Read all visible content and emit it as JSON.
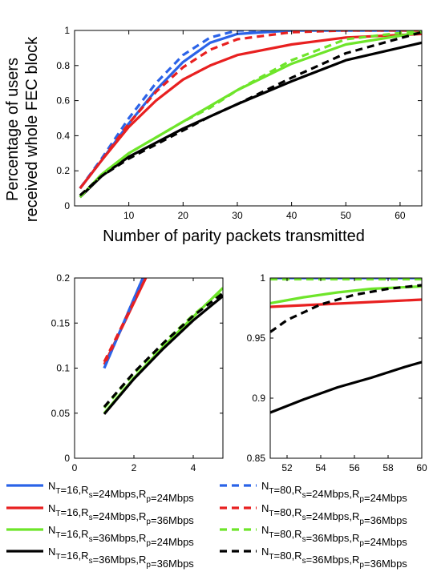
{
  "chart_data": [
    {
      "type": "line",
      "id": "main",
      "xlabel": "Number of parity packets transmitted",
      "ylabel": [
        "Percentage of users",
        "received whole FEC block"
      ],
      "xlim": [
        0,
        64
      ],
      "ylim": [
        0,
        1
      ],
      "xticks": [
        10,
        20,
        30,
        40,
        50,
        60
      ],
      "yticks": [
        0,
        0.2,
        0.4,
        0.6,
        0.8,
        1
      ],
      "ytick_labels": [
        "0",
        "0.2",
        "0.4",
        "0.6",
        "0.8",
        "1"
      ],
      "grid": false,
      "series": [
        {
          "ref": "s1",
          "color": "#2b63e8",
          "dash": false,
          "x": [
            1,
            5,
            10,
            15,
            20,
            25,
            30,
            40,
            50,
            64
          ],
          "y": [
            0.1,
            0.26,
            0.47,
            0.66,
            0.82,
            0.93,
            0.98,
            1.0,
            1.0,
            1.0
          ]
        },
        {
          "ref": "s2",
          "color": "#e82020",
          "dash": false,
          "x": [
            1,
            5,
            10,
            15,
            20,
            25,
            30,
            40,
            50,
            64
          ],
          "y": [
            0.1,
            0.26,
            0.45,
            0.6,
            0.72,
            0.8,
            0.86,
            0.92,
            0.96,
            0.98
          ]
        },
        {
          "ref": "s3",
          "color": "#6ee52a",
          "dash": false,
          "x": [
            1,
            5,
            10,
            15,
            20,
            25,
            30,
            40,
            50,
            64
          ],
          "y": [
            0.05,
            0.18,
            0.3,
            0.39,
            0.48,
            0.57,
            0.66,
            0.81,
            0.92,
            0.99
          ]
        },
        {
          "ref": "s4",
          "color": "#000000",
          "dash": false,
          "x": [
            1,
            5,
            10,
            15,
            20,
            25,
            30,
            40,
            50,
            64
          ],
          "y": [
            0.05,
            0.17,
            0.28,
            0.36,
            0.44,
            0.51,
            0.58,
            0.71,
            0.83,
            0.93
          ]
        },
        {
          "ref": "s5",
          "color": "#2b63e8",
          "dash": true,
          "x": [
            1,
            5,
            10,
            15,
            20,
            25,
            30,
            40,
            50,
            64
          ],
          "y": [
            0.1,
            0.27,
            0.5,
            0.7,
            0.86,
            0.96,
            1.0,
            1.0,
            1.0,
            1.0
          ]
        },
        {
          "ref": "s6",
          "color": "#e82020",
          "dash": true,
          "x": [
            1,
            5,
            10,
            15,
            20,
            25,
            30,
            40,
            50,
            64
          ],
          "y": [
            0.1,
            0.26,
            0.47,
            0.65,
            0.79,
            0.89,
            0.95,
            0.99,
            1.0,
            1.0
          ]
        },
        {
          "ref": "s7",
          "color": "#6ee52a",
          "dash": true,
          "x": [
            1,
            5,
            10,
            15,
            20,
            25,
            30,
            40,
            50,
            64
          ],
          "y": [
            0.05,
            0.18,
            0.3,
            0.39,
            0.48,
            0.56,
            0.66,
            0.83,
            0.95,
            1.0
          ]
        },
        {
          "ref": "s8",
          "color": "#000000",
          "dash": true,
          "x": [
            1,
            5,
            10,
            15,
            20,
            25,
            30,
            40,
            50,
            64
          ],
          "y": [
            0.06,
            0.17,
            0.27,
            0.35,
            0.43,
            0.51,
            0.58,
            0.73,
            0.87,
            0.99
          ]
        }
      ]
    },
    {
      "type": "line",
      "id": "zoom-start",
      "xlim": [
        0,
        5
      ],
      "ylim": [
        0,
        0.2
      ],
      "xticks": [
        0,
        2,
        4
      ],
      "yticks": [
        0,
        0.05,
        0.1,
        0.15,
        0.2
      ],
      "ytick_labels": [
        "0",
        "0.05",
        "0.1",
        "0.15",
        "0.2"
      ],
      "grid": false,
      "series": [
        {
          "ref": "s1",
          "color": "#2b63e8",
          "dash": false,
          "x": [
            1,
            2.3
          ],
          "y": [
            0.1,
            0.2
          ]
        },
        {
          "ref": "s2",
          "color": "#e82020",
          "dash": false,
          "x": [
            1,
            2.4
          ],
          "y": [
            0.104,
            0.2
          ]
        },
        {
          "ref": "s3",
          "color": "#6ee52a",
          "dash": false,
          "x": [
            1,
            2,
            3,
            4,
            5
          ],
          "y": [
            0.05,
            0.089,
            0.124,
            0.157,
            0.189
          ]
        },
        {
          "ref": "s4",
          "color": "#000000",
          "dash": false,
          "x": [
            1,
            2,
            3,
            4,
            5
          ],
          "y": [
            0.049,
            0.088,
            0.122,
            0.153,
            0.18
          ]
        },
        {
          "ref": "s5",
          "color": "#2b63e8",
          "dash": true,
          "x": [
            1,
            2.3
          ],
          "y": [
            0.1,
            0.2
          ]
        },
        {
          "ref": "s6",
          "color": "#e82020",
          "dash": true,
          "x": [
            1,
            2.4
          ],
          "y": [
            0.107,
            0.2
          ]
        },
        {
          "ref": "s7",
          "color": "#6ee52a",
          "dash": true,
          "x": [
            1,
            2,
            3,
            4,
            5
          ],
          "y": [
            0.056,
            0.094,
            0.128,
            0.159,
            0.186
          ]
        },
        {
          "ref": "s8",
          "color": "#000000",
          "dash": true,
          "x": [
            1,
            2,
            3,
            4,
            5
          ],
          "y": [
            0.057,
            0.095,
            0.128,
            0.158,
            0.183
          ]
        }
      ]
    },
    {
      "type": "line",
      "id": "zoom-end",
      "xlim": [
        51,
        60
      ],
      "ylim": [
        0.85,
        1
      ],
      "xticks": [
        52,
        54,
        56,
        58,
        60
      ],
      "yticks": [
        0.85,
        0.9,
        0.95,
        1
      ],
      "ytick_labels": [
        "0.85",
        "0.9",
        "0.95",
        "1"
      ],
      "grid": false,
      "series": [
        {
          "ref": "s1",
          "color": "#2b63e8",
          "dash": false,
          "x": [
            51,
            60
          ],
          "y": [
            1.0,
            1.0
          ]
        },
        {
          "ref": "s2",
          "color": "#e82020",
          "dash": false,
          "x": [
            51,
            54,
            57,
            60
          ],
          "y": [
            0.976,
            0.978,
            0.98,
            0.982
          ]
        },
        {
          "ref": "s3",
          "color": "#6ee52a",
          "dash": false,
          "x": [
            51,
            53,
            55,
            57,
            60
          ],
          "y": [
            0.979,
            0.984,
            0.988,
            0.991,
            0.993
          ]
        },
        {
          "ref": "s4",
          "color": "#000000",
          "dash": false,
          "x": [
            51,
            53,
            55,
            57,
            59,
            60
          ],
          "y": [
            0.888,
            0.899,
            0.909,
            0.917,
            0.926,
            0.93
          ]
        },
        {
          "ref": "s5",
          "color": "#2b63e8",
          "dash": true,
          "x": [
            51,
            60
          ],
          "y": [
            1.0,
            1.0
          ]
        },
        {
          "ref": "s6",
          "color": "#e82020",
          "dash": true,
          "x": [
            51,
            60
          ],
          "y": [
            0.9995,
            0.9995
          ]
        },
        {
          "ref": "s7",
          "color": "#6ee52a",
          "dash": true,
          "x": [
            51,
            60
          ],
          "y": [
            0.999,
            0.999
          ]
        },
        {
          "ref": "s8",
          "color": "#000000",
          "dash": true,
          "x": [
            51,
            52,
            54,
            56,
            58,
            60
          ],
          "y": [
            0.955,
            0.965,
            0.978,
            0.986,
            0.991,
            0.994
          ]
        }
      ]
    }
  ],
  "legend": {
    "placement": "bottom",
    "entries": [
      {
        "ref": "s1",
        "color": "#2b63e8",
        "dash": false,
        "nt": "16",
        "rs": "24Mbps",
        "rp": "24Mbps"
      },
      {
        "ref": "s5",
        "color": "#2b63e8",
        "dash": true,
        "nt": "80",
        "rs": "24Mbps",
        "rp": "24Mbps"
      },
      {
        "ref": "s2",
        "color": "#e82020",
        "dash": false,
        "nt": "16",
        "rs": "24Mbps",
        "rp": "36Mbps"
      },
      {
        "ref": "s6",
        "color": "#e82020",
        "dash": true,
        "nt": "80",
        "rs": "24Mbps",
        "rp": "36Mbps"
      },
      {
        "ref": "s3",
        "color": "#6ee52a",
        "dash": false,
        "nt": "16",
        "rs": "36Mbps",
        "rp": "24Mbps"
      },
      {
        "ref": "s7",
        "color": "#6ee52a",
        "dash": true,
        "nt": "80",
        "rs": "36Mbps",
        "rp": "24Mbps"
      },
      {
        "ref": "s4",
        "color": "#000000",
        "dash": false,
        "nt": "16",
        "rs": "36Mbps",
        "rp": "36Mbps"
      },
      {
        "ref": "s8",
        "color": "#000000",
        "dash": true,
        "nt": "80",
        "rs": "36Mbps",
        "rp": "36Mbps"
      }
    ]
  }
}
